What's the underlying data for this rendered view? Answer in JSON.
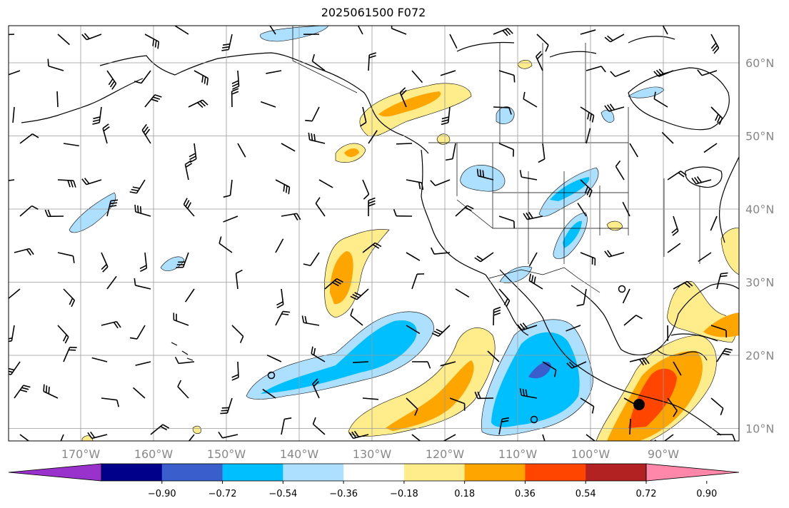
{
  "title": "2025061500 F072",
  "lat_labels": [
    "60°N",
    "50°N",
    "40°N",
    "30°N",
    "20°N",
    "10°N"
  ],
  "lat_values": [
    60,
    50,
    40,
    30,
    20,
    10
  ],
  "lon_labels": [
    "170°W",
    "160°W",
    "150°W",
    "140°W",
    "130°W",
    "120°W",
    "110°W",
    "100°W",
    "90°W"
  ],
  "lon_values": [
    -170,
    -160,
    -150,
    -140,
    -130,
    -120,
    -110,
    -100,
    -90
  ],
  "colorbar": {
    "ticks": [
      "−0.90",
      "−0.72",
      "−0.54",
      "−0.36",
      "−0.18",
      "0.18",
      "0.36",
      "0.54",
      "0.72",
      "0.90"
    ],
    "colors": [
      "#9932CC",
      "#00008B",
      "#3A5FCD",
      "#00BFFF",
      "#ADDFFF",
      "#FFFFFF",
      "#FFEC8B",
      "#FFA500",
      "#FF4500",
      "#B22222",
      "#FF88AA"
    ]
  }
}
